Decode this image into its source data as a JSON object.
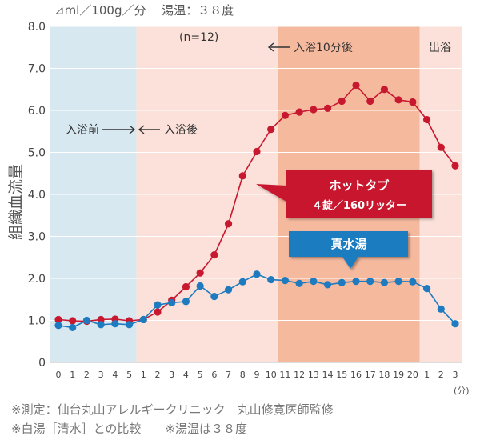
{
  "header_note": "⊿ml／100g／分　 湯温：３８度",
  "footnote_1": "※測定：仙台丸山アレルギークリニック　丸山修寛医師監修",
  "footnote_2": "※白湯［清水］との比較　　※湯温は３８度",
  "chart_data": {
    "type": "line",
    "title": "",
    "xlabel": "",
    "ylabel": "組織血流量",
    "x_unit": "(分)",
    "ylim": [
      0,
      8
    ],
    "yticks": [
      "0",
      "1.0",
      "2.0",
      "3.0",
      "4.0",
      "5.0",
      "6.0",
      "7.0",
      "8.0"
    ],
    "grid": true,
    "categories": [
      "0",
      "1",
      "2",
      "3",
      "4",
      "5",
      "1",
      "2",
      "3",
      "4",
      "5",
      "6",
      "7",
      "8",
      "9",
      "10",
      "11",
      "12",
      "13",
      "14",
      "15",
      "16",
      "17",
      "18",
      "19",
      "20",
      "1",
      "2",
      "3"
    ],
    "phases": [
      {
        "label": "入浴前",
        "from": 0,
        "to": 5,
        "color": "#d7e8f1"
      },
      {
        "label": "入浴後",
        "from": 5,
        "to": 15,
        "color": "#fbe1d9"
      },
      {
        "label": "入浴10分後",
        "from": 15,
        "to": 25,
        "color": "#f5b99e"
      },
      {
        "label": "出浴",
        "from": 25,
        "to": 28,
        "color": "#fbe1d9"
      }
    ],
    "annotations": {
      "n": "(n=12)",
      "before": "入浴前",
      "after": "入浴後",
      "after10": "入浴10分後",
      "exit": "出浴"
    },
    "series": [
      {
        "name": "ホットタブ",
        "sublabel": "４錠／160リッター",
        "color": "#c8182f",
        "values": [
          1.02,
          0.99,
          0.98,
          1.02,
          1.03,
          0.99,
          1.02,
          1.2,
          1.48,
          1.8,
          2.13,
          2.56,
          3.3,
          4.44,
          5.02,
          5.55,
          5.88,
          5.96,
          6.02,
          6.05,
          6.22,
          6.6,
          6.22,
          6.5,
          6.25,
          6.2,
          5.78,
          5.12,
          4.68
        ]
      },
      {
        "name": "真水湯",
        "color": "#1e7bc0",
        "values": [
          0.88,
          0.83,
          1.0,
          0.9,
          0.92,
          0.9,
          1.02,
          1.37,
          1.42,
          1.45,
          1.82,
          1.57,
          1.73,
          1.92,
          2.1,
          1.97,
          1.95,
          1.88,
          1.93,
          1.85,
          1.9,
          1.93,
          1.93,
          1.9,
          1.93,
          1.92,
          1.76,
          1.27,
          0.92
        ]
      }
    ]
  }
}
